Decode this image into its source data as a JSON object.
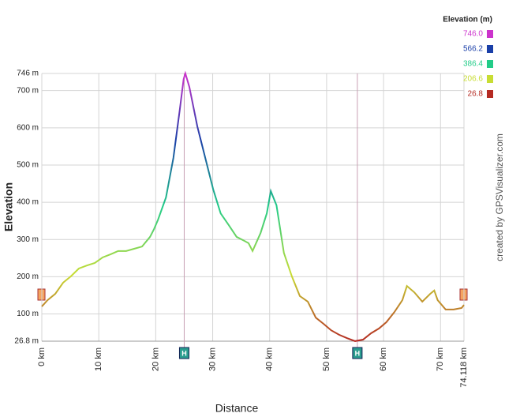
{
  "chart_data": {
    "type": "line",
    "y_label": "Elevation",
    "x_label": "Distance",
    "watermark": "created by GPSVisualizer.com",
    "legend_title": "Elevation (m)",
    "legend": [
      {
        "value": 746,
        "label": "746.0",
        "color": "#cc33cc"
      },
      {
        "value": 566.2,
        "label": "566.2",
        "color": "#1a3fa8"
      },
      {
        "value": 386.4,
        "label": "386.4",
        "color": "#22cc88"
      },
      {
        "value": 206.6,
        "label": "206.6",
        "color": "#c8dd33"
      },
      {
        "value": 26.8,
        "label": "26.8",
        "color": "#b52a22"
      }
    ],
    "xlim": [
      0,
      74.118
    ],
    "ylim": [
      26.8,
      746
    ],
    "xticks": [
      {
        "value": 0,
        "label": "0 km"
      },
      {
        "value": 10,
        "label": "10 km"
      },
      {
        "value": 20,
        "label": "20 km"
      },
      {
        "value": 30,
        "label": "30 km"
      },
      {
        "value": 40,
        "label": "40 km"
      },
      {
        "value": 50,
        "label": "50 km"
      },
      {
        "value": 60,
        "label": "60 km"
      },
      {
        "value": 70,
        "label": "70 km"
      },
      {
        "value": 74.118,
        "label": "74.118 km"
      }
    ],
    "yticks": [
      {
        "value": 26.8,
        "label": "26.8 m"
      },
      {
        "value": 100,
        "label": "100 m"
      },
      {
        "value": 200,
        "label": "200 m"
      },
      {
        "value": 300,
        "label": "300 m"
      },
      {
        "value": 400,
        "label": "400 m"
      },
      {
        "value": 500,
        "label": "500 m"
      },
      {
        "value": 600,
        "label": "600 m"
      },
      {
        "value": 700,
        "label": "700 m"
      },
      {
        "value": 746,
        "label": "746 m"
      }
    ],
    "grid": true,
    "waypoints": [
      {
        "x": 25,
        "label": "H"
      },
      {
        "x": 55.4,
        "label": "H"
      }
    ],
    "x": [
      0,
      1,
      2.36,
      3.74,
      5.1,
      6.5,
      7.9,
      9.3,
      10.7,
      12.05,
      13.4,
      14.8,
      16.2,
      17.6,
      19,
      19.7,
      20.4,
      21.8,
      23.1,
      24.2,
      24.9,
      25.2,
      25.9,
      27.3,
      28.7,
      30.1,
      31.4,
      32.8,
      34.2,
      35.6,
      36.3,
      37,
      38.4,
      39.5,
      40.2,
      41.2,
      42.5,
      43.9,
      45.3,
      46.7,
      48.1,
      49.5,
      50.8,
      52.2,
      53.6,
      55,
      56.4,
      57.8,
      59.2,
      60.5,
      61.9,
      63.3,
      64.1,
      65.4,
      66.8,
      68.2,
      68.9,
      69.5,
      70.9,
      72.3,
      73.7,
      74.118
    ],
    "values": [
      120,
      137,
      154,
      184,
      201,
      222,
      230,
      237,
      252,
      260,
      269,
      269,
      275,
      281,
      307,
      328,
      353,
      413,
      519,
      646,
      731,
      746,
      710,
      604,
      519,
      434,
      370,
      339,
      307,
      296,
      290,
      269,
      317,
      370,
      430,
      392,
      264,
      201,
      148,
      133,
      90,
      73,
      56,
      44,
      35,
      27,
      31,
      48,
      61,
      78,
      105,
      137,
      175,
      158,
      133,
      154,
      163,
      137,
      112,
      112,
      116,
      124
    ]
  }
}
